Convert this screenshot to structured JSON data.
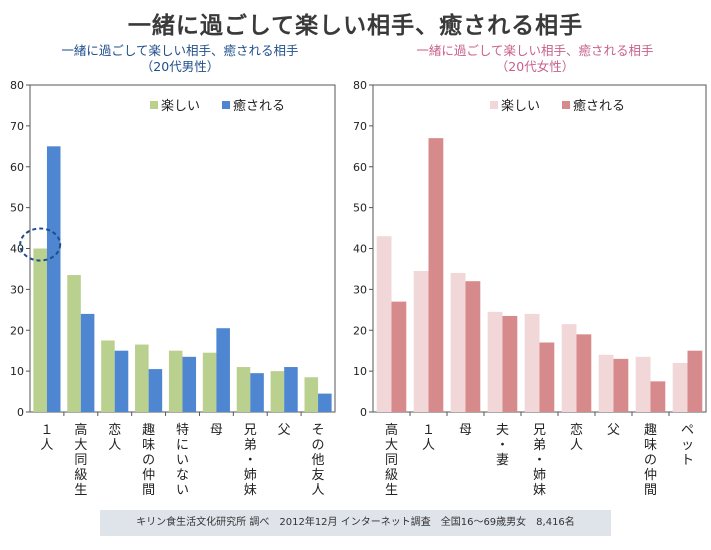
{
  "page": {
    "title": "一緒に過ごして楽しい相手、癒される相手",
    "footer": "キリン食生活文化研究所 調べ　2012年12月 インターネット調査　全国16～69歳男女　8,416名"
  },
  "chart_data": [
    {
      "type": "bar",
      "title": "一緒に過ごして楽しい相手、癒される相手\n（20代男性）",
      "categories": [
        "１人",
        "高大同級生",
        "恋人",
        "趣味の仲間",
        "特にいない",
        "母",
        "兄弟・姉妹",
        "父",
        "その他友人"
      ],
      "series": [
        {
          "name": "楽しい",
          "color": "#b9d08f",
          "values": [
            40,
            33.5,
            17.5,
            16.5,
            15,
            14.5,
            11,
            10,
            8.5
          ]
        },
        {
          "name": "癒される",
          "color": "#4f86d1",
          "values": [
            65,
            24,
            15,
            10.5,
            13.5,
            20.5,
            9.5,
            11,
            4.5
          ]
        }
      ],
      "ylim": [
        0,
        80
      ],
      "yticks": [
        0,
        10,
        20,
        30,
        40,
        50,
        60,
        70,
        80
      ],
      "grid": false,
      "legend": "top-right",
      "annotation": "dashed circle around 40"
    },
    {
      "type": "bar",
      "title": "一緒に過ごして楽しい相手、癒される相手\n（20代女性）",
      "categories": [
        "高大同級生",
        "１人",
        "母",
        "夫・妻",
        "兄弟・姉妹",
        "恋人",
        "父",
        "趣味の仲間",
        "ペット"
      ],
      "series": [
        {
          "name": "楽しい",
          "color": "#f1d7d8",
          "values": [
            43,
            34.5,
            34,
            24.5,
            24,
            21.5,
            14,
            13.5,
            12
          ]
        },
        {
          "name": "癒される",
          "color": "#d68a8c",
          "values": [
            27,
            67,
            32,
            23.5,
            17,
            19,
            13,
            7.5,
            15
          ]
        }
      ],
      "ylim": [
        0,
        80
      ],
      "yticks": [
        0,
        10,
        20,
        30,
        40,
        50,
        60,
        70,
        80
      ],
      "grid": false,
      "legend": "top-right"
    }
  ]
}
